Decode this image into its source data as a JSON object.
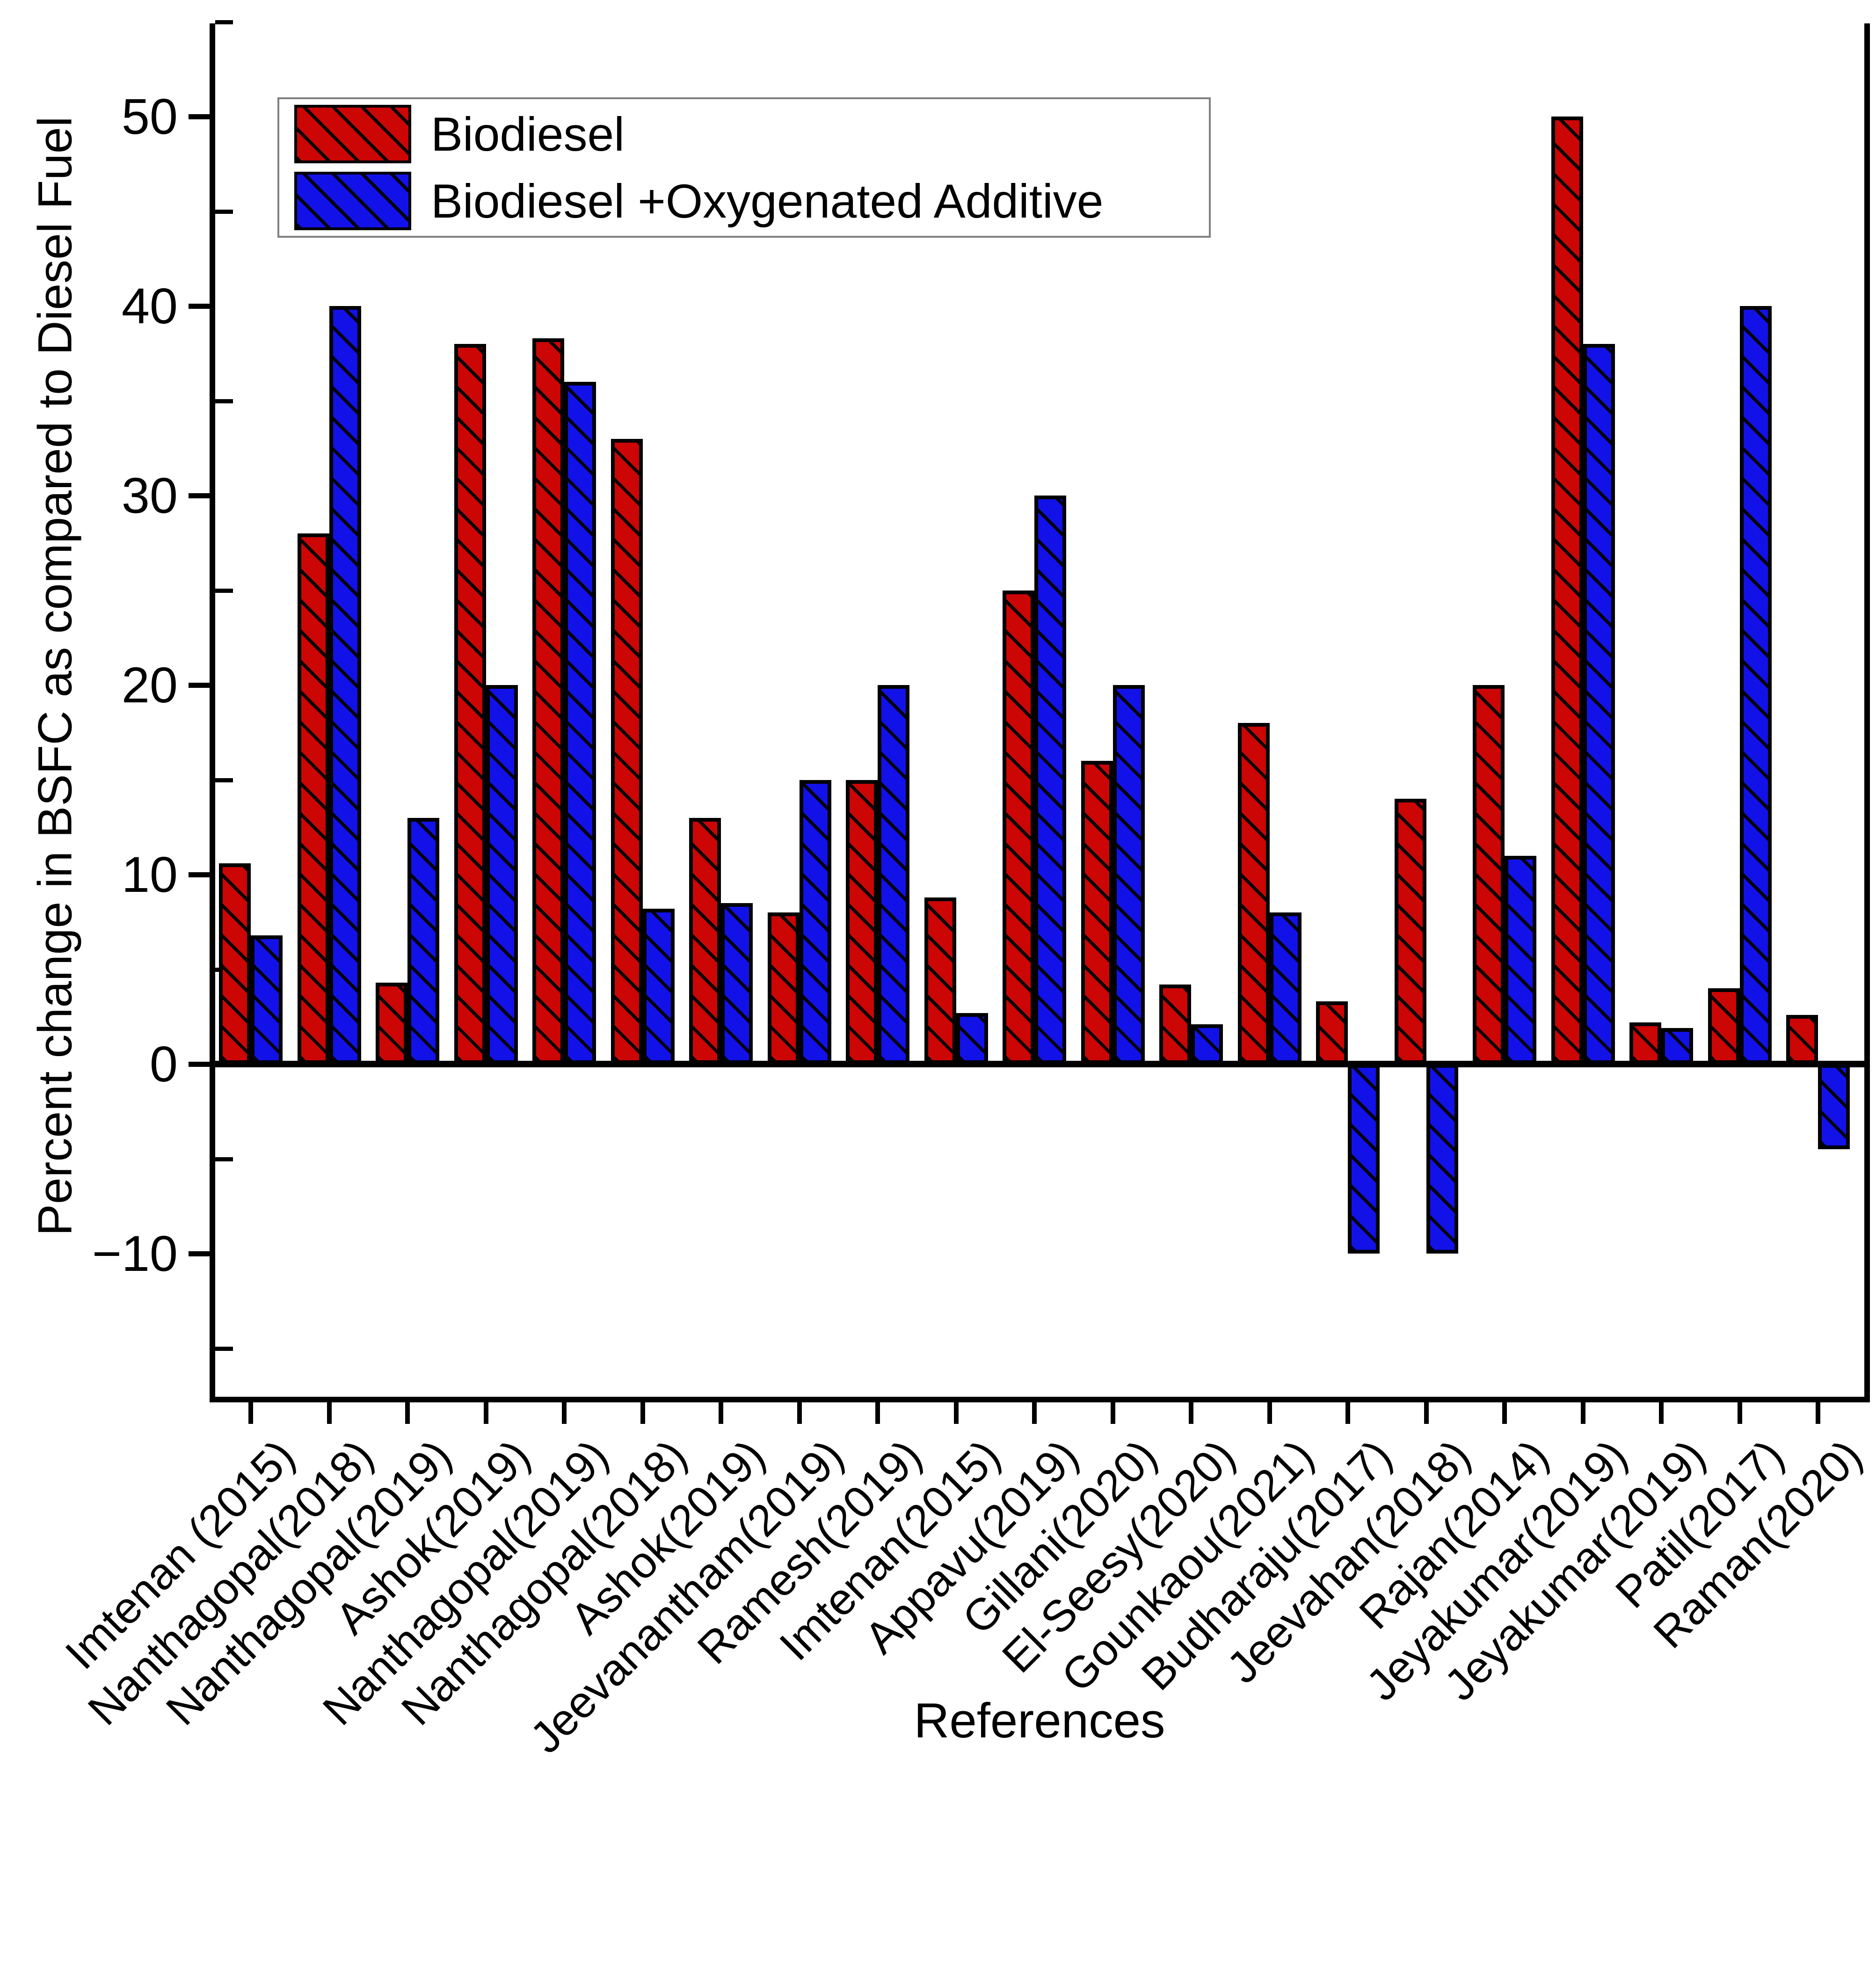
{
  "chart_data": {
    "type": "bar",
    "title": "",
    "xlabel": "References",
    "ylabel": "Percent change in BSFC as compared to Diesel Fuel",
    "ylim": [
      -17.5,
      55
    ],
    "grid": false,
    "legend_position": "top-left-inside",
    "hatch_pattern": "black-diagonal-stripes",
    "y_axis": {
      "major_ticks": [
        {
          "value": 50,
          "label": "50"
        },
        {
          "value": 40,
          "label": "40"
        },
        {
          "value": 30,
          "label": "30"
        },
        {
          "value": 20,
          "label": "20"
        },
        {
          "value": 10,
          "label": "10"
        },
        {
          "value": 0,
          "label": "0"
        },
        {
          "value": -10,
          "label": "−10"
        }
      ],
      "minor_tick_values": [
        55,
        45,
        35,
        25,
        15,
        5,
        -5,
        -15
      ]
    },
    "categories": [
      "Imtenan (2015)",
      "Nanthagopal(2018)",
      "Nanthagopal(2019)",
      "Ashok(2019)",
      "Nanthagopal(2019)",
      "Nanthagopal(2018)",
      "Ashok(2019)",
      "Jeevanantham(2019)",
      "Ramesh(2019)",
      "Imtenan(2015)",
      "Appavu(2019)",
      "Gillani(2020)",
      "El-Seesy(2020)",
      "Gounkaou(2021)",
      "Budharaju(2017)",
      "Jeevahan(2018)",
      "Rajan(2014)",
      "Jeyakumar(2019)",
      "Jeyakumar(2019)",
      "Patil(2017)",
      "Raman(2020)"
    ],
    "series": [
      {
        "name": "Biodiesel",
        "color": "#cc0505",
        "values": [
          10.6,
          28,
          4.3,
          38,
          38.3,
          33,
          13,
          8,
          15,
          8.8,
          25,
          16,
          4.2,
          18,
          3.3,
          14,
          20,
          50,
          2.2,
          4,
          2.6
        ]
      },
      {
        "name": "Biodiesel +Oxygenated Additive",
        "color": "#1212e8",
        "values": [
          6.8,
          40,
          13,
          20,
          36,
          8.2,
          8.5,
          15,
          20,
          2.7,
          30,
          20,
          2.1,
          8,
          -10,
          -10,
          11,
          38,
          1.9,
          40,
          -4.5
        ]
      }
    ]
  }
}
